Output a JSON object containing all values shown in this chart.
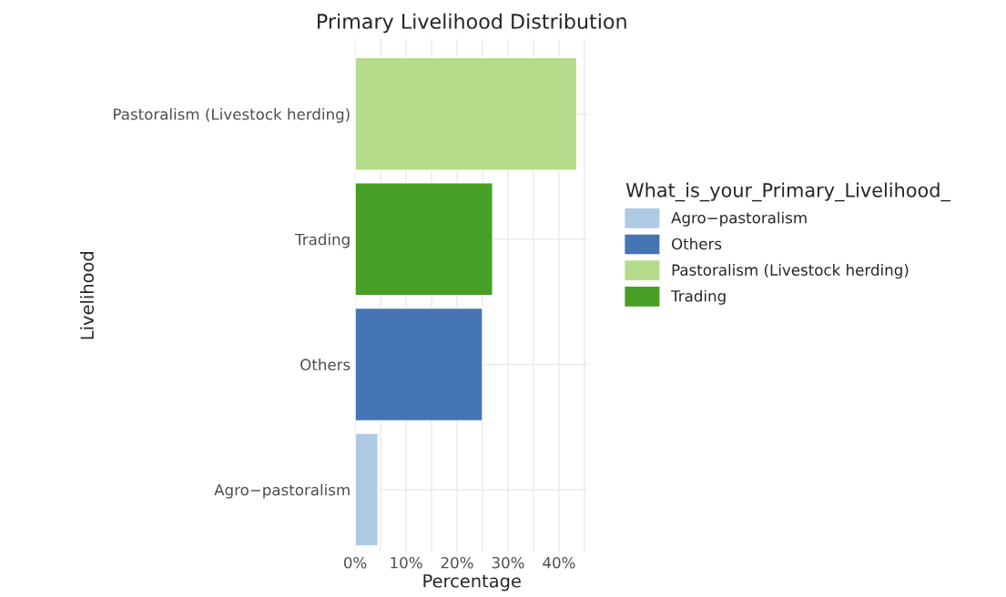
{
  "chart_data": {
    "type": "bar",
    "orientation": "horizontal",
    "title": "Primary Livelihood Distribution",
    "xlabel": "Percentage",
    "ylabel": "Livelihood",
    "legend_title": "What_is_your_Primary_Livelihood_",
    "categories": [
      "Pastoralism (Livestock herding)",
      "Trading",
      "Others",
      "Agro−pastoralism"
    ],
    "series": [
      {
        "name": "Agro−pastoralism",
        "color": "#aecbe3",
        "values": [
          null,
          null,
          null,
          4.5
        ]
      },
      {
        "name": "Others",
        "color": "#4575b4",
        "values": [
          null,
          null,
          25,
          null
        ]
      },
      {
        "name": "Pastoralism (Livestock herding)",
        "color": "#b5dc8a",
        "values": [
          43.5,
          null,
          null,
          null
        ]
      },
      {
        "name": "Trading",
        "color": "#479f26",
        "values": [
          null,
          27,
          null,
          null
        ]
      }
    ],
    "xlim": [
      0,
      45.8
    ],
    "xticks": [
      {
        "value": 0,
        "label": "0%"
      },
      {
        "value": 5,
        "label": null
      },
      {
        "value": 10,
        "label": "10%"
      },
      {
        "value": 15,
        "label": null
      },
      {
        "value": 20,
        "label": "20%"
      },
      {
        "value": 25,
        "label": null
      },
      {
        "value": 30,
        "label": "30%"
      },
      {
        "value": 35,
        "label": null
      },
      {
        "value": 40,
        "label": "40%"
      },
      {
        "value": 45,
        "label": null
      }
    ],
    "grid": true,
    "legend": "right"
  }
}
